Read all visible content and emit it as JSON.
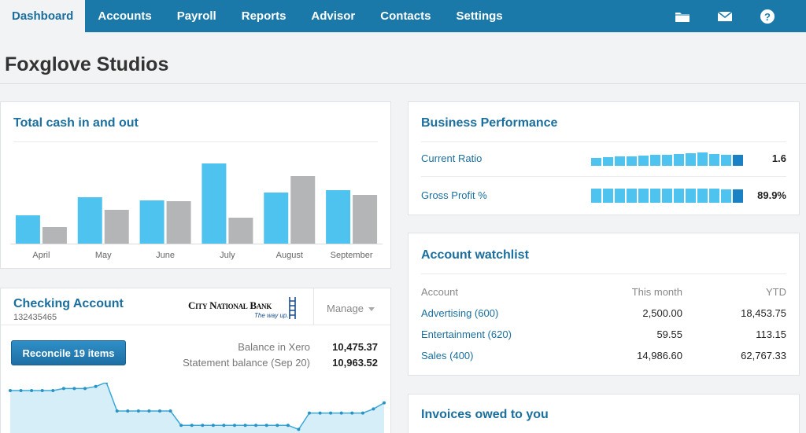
{
  "nav": {
    "tabs": [
      {
        "label": "Dashboard",
        "active": true
      },
      {
        "label": "Accounts"
      },
      {
        "label": "Payroll"
      },
      {
        "label": "Reports"
      },
      {
        "label": "Advisor"
      },
      {
        "label": "Contacts"
      },
      {
        "label": "Settings"
      }
    ],
    "icons": [
      "folder-icon",
      "mail-icon",
      "help-icon"
    ]
  },
  "org": {
    "title": "Foxglove Studios"
  },
  "cash": {
    "title": "Total cash in and out"
  },
  "chart_data": {
    "type": "bar",
    "categories": [
      "April",
      "May",
      "June",
      "July",
      "August",
      "September"
    ],
    "series": [
      {
        "values": [
          36,
          59,
          55,
          102,
          65,
          68
        ],
        "color": "#4fc3ef"
      },
      {
        "values": [
          21,
          43,
          54,
          33,
          86,
          62
        ],
        "color": "#b3b5b7"
      }
    ],
    "ylim": [
      0,
      110
    ],
    "grid": false
  },
  "checking": {
    "name": "Checking Account",
    "number": "132435465",
    "bank_name": "City National Bank",
    "bank_tagline": "The way up.",
    "manage_label": "Manage",
    "reconcile_label": "Reconcile 19 items",
    "balance_xero_label": "Balance in Xero",
    "balance_xero_value": "10,475.37",
    "statement_label": "Statement balance (Sep 20)",
    "statement_value": "10,963.52",
    "sparkline": [
      10,
      10,
      10,
      10,
      10,
      11,
      11,
      11,
      12,
      14,
      0,
      0,
      0,
      0,
      0,
      0,
      -7,
      -7,
      -7,
      -7,
      -7,
      -7,
      -7,
      -7,
      -7,
      -7,
      -7,
      -9,
      -1,
      -1,
      -1,
      -1,
      -1,
      -1,
      1,
      4
    ]
  },
  "performance": {
    "title": "Business Performance",
    "rows": [
      {
        "label": "Current Ratio",
        "value": "1.6",
        "bars": [
          0.55,
          0.6,
          0.65,
          0.65,
          0.72,
          0.75,
          0.8,
          0.82,
          0.9,
          0.92,
          0.85,
          0.75,
          0.8
        ]
      },
      {
        "label": "Gross Profit %",
        "value": "89.9%",
        "bars": [
          1,
          1,
          1,
          1,
          1,
          1,
          1,
          1,
          1,
          1,
          1,
          0.92,
          0.95
        ]
      }
    ]
  },
  "watchlist": {
    "title": "Account watchlist",
    "columns": [
      "Account",
      "This month",
      "YTD"
    ],
    "rows": [
      {
        "account": "Advertising (600)",
        "month": "2,500.00",
        "ytd": "18,453.75"
      },
      {
        "account": "Entertainment (620)",
        "month": "59.55",
        "ytd": "113.15"
      },
      {
        "account": "Sales (400)",
        "month": "14,986.60",
        "ytd": "62,767.33"
      }
    ]
  },
  "invoices": {
    "title": "Invoices owed to you"
  },
  "colors": {
    "nav": "#1a79a8",
    "accent": "#1a6f9e",
    "bar_in": "#4fc3ef",
    "bar_out": "#b3b5b7"
  }
}
